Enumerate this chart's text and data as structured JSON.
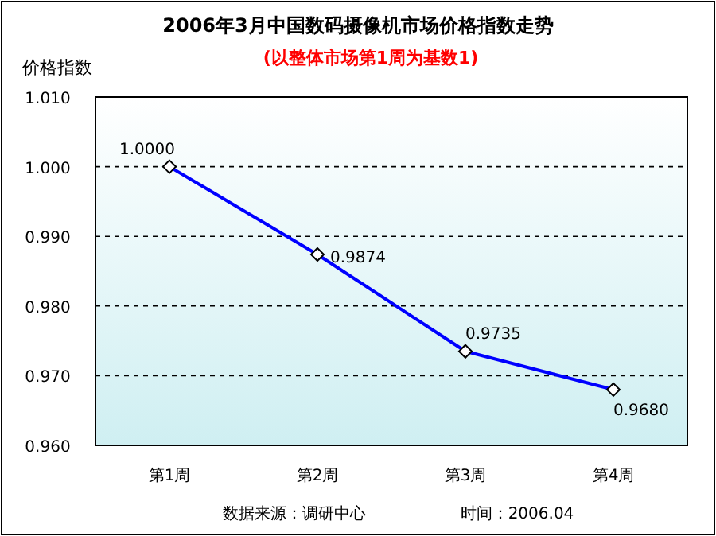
{
  "chart_data": {
    "type": "line",
    "title": "2006年3月中国数码摄像机市场价格指数走势",
    "subtitle": "(以整体市场第1周为基数1)",
    "ylabel": "价格指数",
    "categories": [
      "第1周",
      "第2周",
      "第3周",
      "第4周"
    ],
    "series": [
      {
        "color": "#0000ff",
        "values": [
          1.0,
          0.9874,
          0.9735,
          0.968
        ],
        "value_labels": [
          "1.0000",
          "0.9874",
          "0.9735",
          "0.9680"
        ]
      }
    ],
    "ylim": [
      0.96,
      1.01
    ],
    "yticks": [
      {
        "value": 0.96,
        "label": "0.960"
      },
      {
        "value": 0.97,
        "label": "0.970"
      },
      {
        "value": 0.98,
        "label": "0.980"
      },
      {
        "value": 0.99,
        "label": "0.990"
      },
      {
        "value": 1.0,
        "label": "1.000"
      },
      {
        "value": 1.01,
        "label": "1.010"
      }
    ],
    "grid": "y",
    "marker": "diamond",
    "line_style": "solid",
    "annotations": [
      "数据来源：调研中心",
      "时间：2006.04"
    ]
  }
}
